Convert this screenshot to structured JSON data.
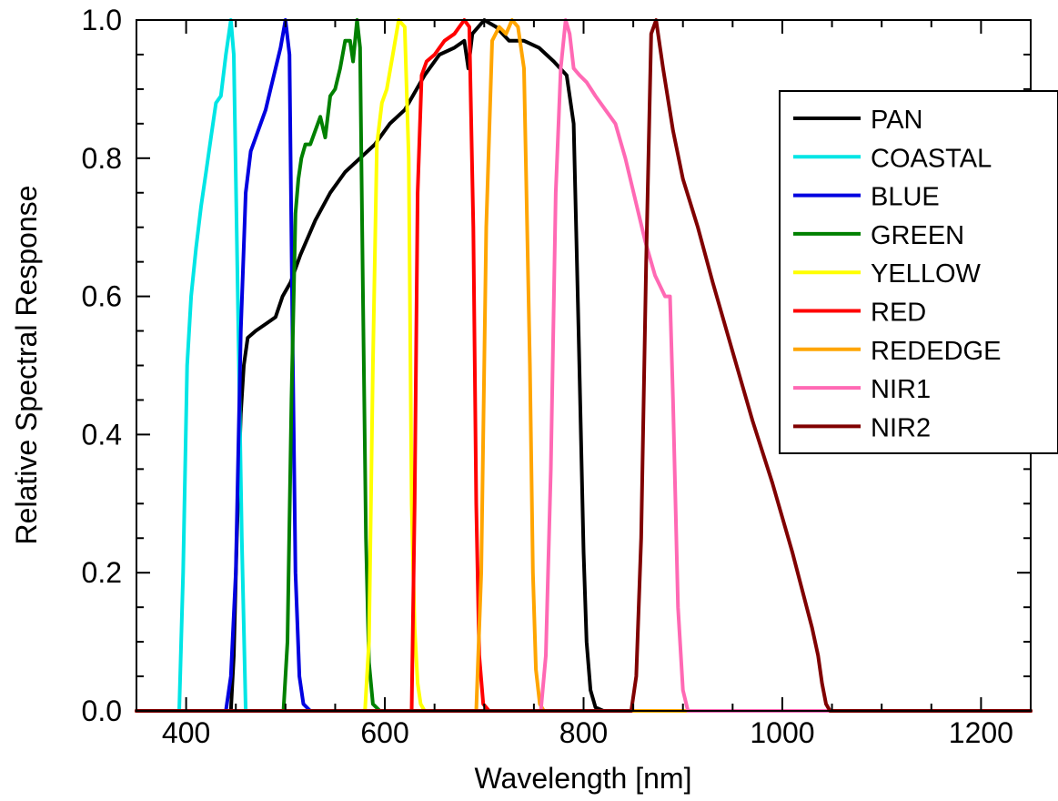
{
  "chart_data": {
    "type": "line",
    "title": "",
    "xlabel": "Wavelength [nm]",
    "ylabel": "Relative Spectral Response",
    "xlim": [
      350,
      1250
    ],
    "ylim": [
      0,
      1.0
    ],
    "xticks": [
      400,
      600,
      800,
      1000,
      1200
    ],
    "yticks": [
      0.0,
      0.2,
      0.4,
      0.6,
      0.8,
      1.0
    ],
    "ytick_labels": [
      "0.0",
      "0.2",
      "0.4",
      "0.6",
      "0.8",
      "1.0"
    ],
    "grid": false,
    "legend_position": "top-right",
    "series": [
      {
        "name": "PAN",
        "color": "#000000",
        "x": [
          350,
          445,
          448,
          451,
          455,
          458,
          462,
          470,
          480,
          490,
          497,
          505,
          515,
          530,
          545,
          560,
          575,
          590,
          605,
          620,
          640,
          655,
          670,
          680,
          684,
          688,
          700,
          712,
          725,
          740,
          755,
          770,
          783,
          790,
          795,
          800,
          803,
          807,
          812,
          820,
          1250
        ],
        "y": [
          0,
          0,
          0.08,
          0.25,
          0.43,
          0.5,
          0.54,
          0.55,
          0.56,
          0.57,
          0.6,
          0.62,
          0.66,
          0.71,
          0.75,
          0.78,
          0.8,
          0.82,
          0.85,
          0.87,
          0.92,
          0.95,
          0.96,
          0.97,
          0.93,
          0.98,
          1.0,
          0.99,
          0.97,
          0.97,
          0.96,
          0.94,
          0.92,
          0.85,
          0.55,
          0.23,
          0.1,
          0.03,
          0.005,
          0,
          0
        ]
      },
      {
        "name": "COASTAL",
        "color": "#00e5e5",
        "x": [
          350,
          393,
          397,
          401,
          405,
          410,
          415,
          420,
          425,
          430,
          435,
          440,
          445,
          448,
          452,
          456,
          460,
          1250
        ],
        "y": [
          0,
          0,
          0.2,
          0.5,
          0.6,
          0.67,
          0.73,
          0.78,
          0.83,
          0.88,
          0.89,
          0.95,
          1.0,
          0.95,
          0.6,
          0.25,
          0,
          0
        ]
      },
      {
        "name": "BLUE",
        "color": "#0000e0",
        "x": [
          350,
          440,
          445,
          450,
          455,
          460,
          465,
          470,
          475,
          480,
          485,
          490,
          495,
          500,
          504,
          507,
          510,
          514,
          518,
          525,
          1250
        ],
        "y": [
          0,
          0,
          0.05,
          0.2,
          0.55,
          0.75,
          0.81,
          0.83,
          0.85,
          0.87,
          0.9,
          0.93,
          0.96,
          1.0,
          0.95,
          0.55,
          0.2,
          0.05,
          0.01,
          0,
          0
        ]
      },
      {
        "name": "GREEN",
        "color": "#008000",
        "x": [
          350,
          498,
          502,
          506,
          510,
          513,
          516,
          520,
          525,
          530,
          535,
          540,
          545,
          550,
          555,
          560,
          565,
          568,
          572,
          575,
          578,
          581,
          584,
          588,
          595,
          1250
        ],
        "y": [
          0,
          0,
          0.1,
          0.45,
          0.72,
          0.77,
          0.8,
          0.82,
          0.82,
          0.84,
          0.86,
          0.83,
          0.89,
          0.9,
          0.93,
          0.97,
          0.97,
          0.94,
          1.0,
          0.96,
          0.6,
          0.25,
          0.07,
          0.01,
          0,
          0
        ]
      },
      {
        "name": "YELLOW",
        "color": "#ffff00",
        "x": [
          350,
          580,
          584,
          588,
          592,
          597,
          602,
          608,
          614,
          620,
          624,
          627,
          630,
          633,
          636,
          640,
          1250
        ],
        "y": [
          0,
          0,
          0.1,
          0.5,
          0.82,
          0.88,
          0.9,
          0.95,
          1.0,
          0.99,
          0.8,
          0.3,
          0.12,
          0.04,
          0.01,
          0,
          0
        ]
      },
      {
        "name": "RED",
        "color": "#ff0000",
        "x": [
          350,
          627,
          630,
          633,
          637,
          642,
          650,
          660,
          670,
          680,
          685,
          689,
          692,
          695,
          699,
          705,
          1250
        ],
        "y": [
          0,
          0,
          0.3,
          0.75,
          0.92,
          0.94,
          0.95,
          0.97,
          0.98,
          1.0,
          0.99,
          0.7,
          0.3,
          0.08,
          0.01,
          0,
          0
        ]
      },
      {
        "name": "REDEDGE",
        "color": "#ffa500",
        "x": [
          350,
          692,
          697,
          702,
          708,
          715,
          722,
          728,
          734,
          740,
          746,
          749,
          752,
          756,
          760,
          1250
        ],
        "y": [
          0,
          0,
          0.2,
          0.7,
          0.97,
          0.99,
          0.98,
          1.0,
          0.99,
          0.93,
          0.5,
          0.2,
          0.06,
          0.01,
          0,
          0
        ]
      },
      {
        "name": "NIR1",
        "color": "#ff69b4",
        "x": [
          350,
          757,
          762,
          767,
          772,
          777,
          782,
          786,
          790,
          796,
          803,
          812,
          822,
          832,
          842,
          852,
          862,
          872,
          882,
          887,
          890,
          895,
          900,
          905,
          1250
        ],
        "y": [
          0,
          0,
          0.08,
          0.35,
          0.75,
          0.93,
          1.0,
          0.98,
          0.93,
          0.92,
          0.91,
          0.89,
          0.87,
          0.85,
          0.8,
          0.74,
          0.68,
          0.63,
          0.6,
          0.6,
          0.45,
          0.15,
          0.03,
          0,
          0
        ]
      },
      {
        "name": "NIR2",
        "color": "#800000",
        "x": [
          350,
          848,
          853,
          858,
          863,
          868,
          873,
          880,
          890,
          900,
          915,
          930,
          950,
          970,
          990,
          1010,
          1030,
          1036,
          1040,
          1044,
          1048,
          1250
        ],
        "y": [
          0,
          0,
          0.05,
          0.25,
          0.65,
          0.98,
          1.0,
          0.93,
          0.84,
          0.77,
          0.7,
          0.62,
          0.52,
          0.42,
          0.33,
          0.23,
          0.12,
          0.08,
          0.04,
          0.01,
          0,
          0
        ]
      }
    ]
  }
}
